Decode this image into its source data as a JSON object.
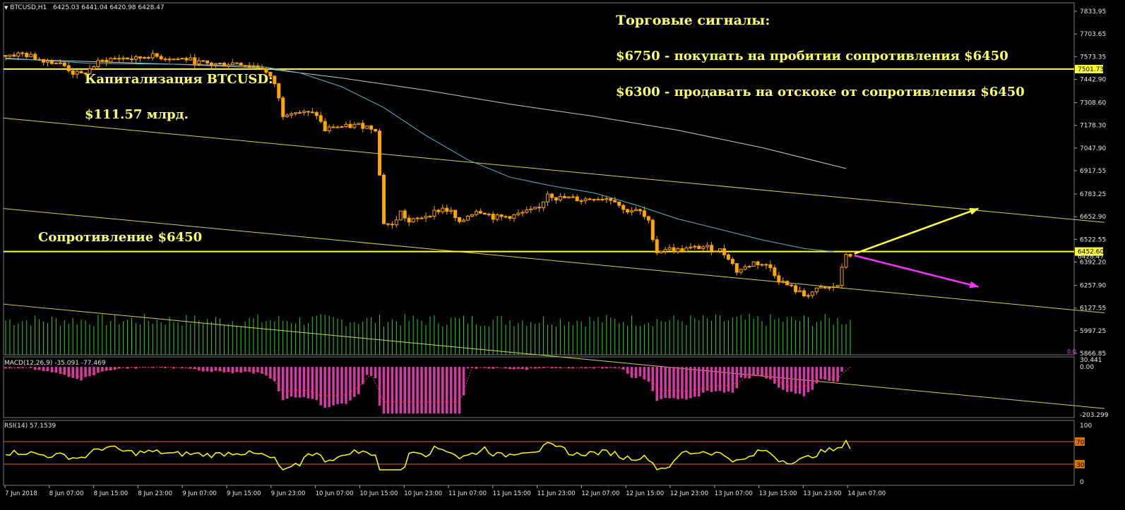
{
  "header": {
    "symbol": "BTCUSD,H1",
    "ohlc": "6425.03 6441.04 6420.98 6428.47",
    "macd": "MACD(12,26,9) -35.091 -77.469",
    "rsi": "RSI(14) 57.1539"
  },
  "annotations": {
    "signals_title": "Торговые сигналы:",
    "buy_signal": "$6750 - покупать на пробитии сопротивления $6450",
    "sell_signal": "$6300 - продавать на отскоке от сопротивления $6450",
    "cap_label": "Капитализация BTCUSD:",
    "cap_value": "$111.57 млрд.",
    "resistance": "Сопротивление $6450"
  },
  "colors": {
    "background": "#000000",
    "bull_candle": "#ffa500",
    "bear_candle": "#ffa500",
    "ma_fast": "#4fb8c8",
    "ma_slow": "#c8c8c8",
    "level_line": "#ffff33",
    "channel_line": "#d4d44a",
    "volume": "#33cc33",
    "macd_hist": "#d63aa8",
    "macd_signal": "#ff3333",
    "rsi_line": "#ffff00",
    "rsi_levels": "#e07000",
    "arrow_buy": "#ffff33",
    "arrow_sell": "#ff33ff",
    "annotation_text": "#ffff66"
  },
  "chart_data": {
    "type": "candlestick",
    "symbol": "BTCUSD",
    "timeframe": "H1",
    "x_tick_labels": [
      "7 Jun 2018",
      "8 Jun 07:00",
      "8 Jun 15:00",
      "8 Jun 23:00",
      "9 Jun 07:00",
      "9 Jun 15:00",
      "9 Jun 23:00",
      "10 Jun 07:00",
      "10 Jun 15:00",
      "10 Jun 23:00",
      "11 Jun 07:00",
      "11 Jun 15:00",
      "11 Jun 23:00",
      "12 Jun 07:00",
      "12 Jun 15:00",
      "12 Jun 23:00",
      "13 Jun 07:00",
      "13 Jun 15:00",
      "13 Jun 23:00",
      "14 Jun 07:00"
    ],
    "y_tick_labels": [
      "7833.95",
      "7703.65",
      "7573.35",
      "7442.90",
      "7308.60",
      "7178.30",
      "7047.90",
      "6917.55",
      "6783.25",
      "6652.90",
      "6522.55",
      "6392.20",
      "6257.90",
      "6127.55",
      "5997.25",
      "5866.85"
    ],
    "ylim": [
      5866.85,
      7833.95
    ],
    "price_labels": {
      "upper_level": "7501.73",
      "current_level": "6452.60",
      "last_price": "6428.47",
      "volume_zero": "0.0"
    },
    "horizontal_levels": [
      7501.73,
      6452.6
    ],
    "close_path": [
      [
        0,
        7580
      ],
      [
        4,
        7590
      ],
      [
        8,
        7560
      ],
      [
        12,
        7540
      ],
      [
        14,
        7520
      ],
      [
        16,
        7480
      ],
      [
        18,
        7470
      ],
      [
        20,
        7500
      ],
      [
        22,
        7540
      ],
      [
        25,
        7560
      ],
      [
        28,
        7565
      ],
      [
        31,
        7560
      ],
      [
        34,
        7580
      ],
      [
        37,
        7570
      ],
      [
        40,
        7560
      ],
      [
        43,
        7560
      ],
      [
        46,
        7540
      ],
      [
        49,
        7530
      ],
      [
        52,
        7530
      ],
      [
        55,
        7540
      ],
      [
        58,
        7520
      ],
      [
        61,
        7510
      ],
      [
        64,
        7420
      ],
      [
        66,
        7240
      ],
      [
        68,
        7260
      ],
      [
        71,
        7250
      ],
      [
        74,
        7240
      ],
      [
        76,
        7150
      ],
      [
        78,
        7170
      ],
      [
        81,
        7170
      ],
      [
        84,
        7180
      ],
      [
        86,
        7170
      ],
      [
        88,
        7160
      ],
      [
        90,
        6620
      ],
      [
        92,
        6600
      ],
      [
        94,
        6680
      ],
      [
        96,
        6620
      ],
      [
        98,
        6640
      ],
      [
        101,
        6670
      ],
      [
        104,
        6700
      ],
      [
        106,
        6680
      ],
      [
        108,
        6610
      ],
      [
        110,
        6660
      ],
      [
        112,
        6690
      ],
      [
        114,
        6680
      ],
      [
        116,
        6650
      ],
      [
        118,
        6650
      ],
      [
        121,
        6660
      ],
      [
        124,
        6680
      ],
      [
        127,
        6700
      ],
      [
        129,
        6790
      ],
      [
        131,
        6760
      ],
      [
        134,
        6760
      ],
      [
        137,
        6750
      ],
      [
        140,
        6760
      ],
      [
        143,
        6760
      ],
      [
        145,
        6750
      ],
      [
        147,
        6690
      ],
      [
        149,
        6690
      ],
      [
        151,
        6680
      ],
      [
        153,
        6620
      ],
      [
        155,
        6450
      ],
      [
        157,
        6470
      ],
      [
        160,
        6460
      ],
      [
        163,
        6470
      ],
      [
        166,
        6480
      ],
      [
        168,
        6470
      ],
      [
        170,
        6460
      ],
      [
        172,
        6420
      ],
      [
        174,
        6340
      ],
      [
        176,
        6360
      ],
      [
        178,
        6390
      ],
      [
        180,
        6380
      ],
      [
        182,
        6360
      ],
      [
        184,
        6290
      ],
      [
        186,
        6260
      ],
      [
        188,
        6230
      ],
      [
        190,
        6200
      ],
      [
        192,
        6220
      ],
      [
        194,
        6240
      ],
      [
        196,
        6240
      ],
      [
        198,
        6260
      ],
      [
        200,
        6440
      ],
      [
        202,
        6428
      ]
    ],
    "candle_count": 202,
    "moving_average_fast": [
      [
        0,
        7565
      ],
      [
        20,
        7535
      ],
      [
        40,
        7530
      ],
      [
        60,
        7520
      ],
      [
        70,
        7480
      ],
      [
        80,
        7400
      ],
      [
        90,
        7280
      ],
      [
        100,
        7120
      ],
      [
        110,
        6980
      ],
      [
        120,
        6880
      ],
      [
        130,
        6830
      ],
      [
        140,
        6790
      ],
      [
        150,
        6720
      ],
      [
        160,
        6640
      ],
      [
        170,
        6580
      ],
      [
        180,
        6520
      ],
      [
        190,
        6470
      ],
      [
        197,
        6452
      ]
    ],
    "moving_average_slow": [
      [
        0,
        7560
      ],
      [
        20,
        7545
      ],
      [
        40,
        7530
      ],
      [
        60,
        7510
      ],
      [
        80,
        7450
      ],
      [
        100,
        7380
      ],
      [
        120,
        7300
      ],
      [
        140,
        7230
      ],
      [
        160,
        7150
      ],
      [
        180,
        7050
      ],
      [
        200,
        6930
      ]
    ],
    "channel_lines": [
      {
        "x": [
          0,
          262
        ],
        "y": [
          7220,
          6620
        ]
      },
      {
        "x": [
          0,
          262
        ],
        "y": [
          6700,
          6100
        ]
      },
      {
        "x": [
          0,
          262
        ],
        "y": [
          6150,
          5550
        ]
      }
    ],
    "arrows": {
      "buy": {
        "from": [
          202,
          6440
        ],
        "to": [
          232,
          6700
        ]
      },
      "sell": {
        "from": [
          202,
          6430
        ],
        "to": [
          232,
          6250
        ]
      }
    },
    "indicators": {
      "macd": {
        "fast": 12,
        "slow": 26,
        "signal": 9,
        "macd": -35.091,
        "signal_value": -77.469,
        "y_tick_labels": [
          "30.441",
          "0.00",
          "-203.299"
        ],
        "ylim": [
          -203.299,
          30.441
        ]
      },
      "rsi": {
        "period": 14,
        "value": 57.1539,
        "levels": [
          70,
          30
        ],
        "y_tick_labels": [
          "100",
          "70",
          "30",
          "0"
        ],
        "ylim": [
          0,
          100
        ]
      }
    },
    "grid": false,
    "legend": "none"
  }
}
